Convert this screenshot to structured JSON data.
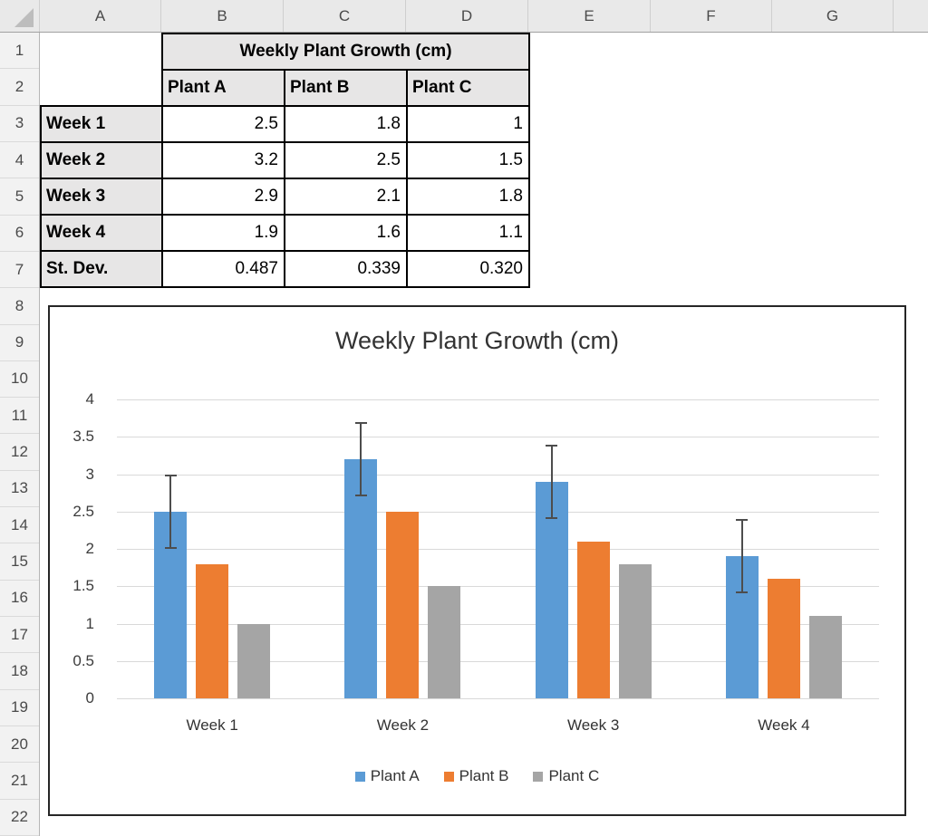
{
  "sheet": {
    "column_headers": [
      "A",
      "B",
      "C",
      "D",
      "E",
      "F",
      "G"
    ],
    "row_numbers": [
      1,
      2,
      3,
      4,
      5,
      6,
      7,
      8,
      9,
      10,
      11,
      12,
      13,
      14,
      15,
      16,
      17,
      18,
      19,
      20,
      21,
      22
    ],
    "table": {
      "title": "Weekly Plant Growth (cm)",
      "column_headers": [
        "Plant A",
        "Plant B",
        "Plant C"
      ],
      "rows": [
        {
          "label": "Week 1",
          "values": [
            "2.5",
            "1.8",
            "1"
          ]
        },
        {
          "label": "Week 2",
          "values": [
            "3.2",
            "2.5",
            "1.5"
          ]
        },
        {
          "label": "Week 3",
          "values": [
            "2.9",
            "2.1",
            "1.8"
          ]
        },
        {
          "label": "Week 4",
          "values": [
            "1.9",
            "1.6",
            "1.1"
          ]
        },
        {
          "label": "St. Dev.",
          "values": [
            "0.487",
            "0.339",
            "0.320"
          ]
        }
      ]
    }
  },
  "chart_data": {
    "type": "bar",
    "title": "Weekly Plant Growth (cm)",
    "categories": [
      "Week 1",
      "Week 2",
      "Week 3",
      "Week 4"
    ],
    "series": [
      {
        "name": "Plant A",
        "color": "#5B9BD5",
        "values": [
          2.5,
          3.2,
          2.9,
          1.9
        ],
        "error": 0.487
      },
      {
        "name": "Plant B",
        "color": "#ED7D31",
        "values": [
          1.8,
          2.5,
          2.1,
          1.6
        ]
      },
      {
        "name": "Plant C",
        "color": "#A5A5A5",
        "values": [
          1.0,
          1.5,
          1.8,
          1.1
        ]
      }
    ],
    "ylim": [
      0,
      4
    ],
    "ytick_step": 0.5,
    "grid": true,
    "legend_position": "bottom",
    "error_bar_color": "#4d4d4d"
  }
}
